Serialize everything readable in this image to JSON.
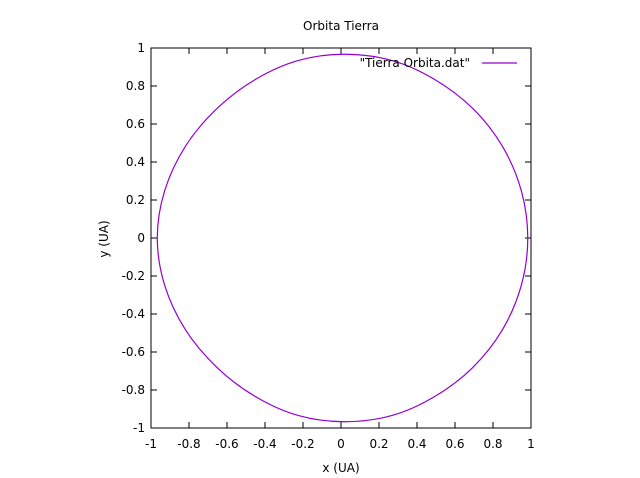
{
  "chart_data": {
    "type": "line",
    "title": "Orbita Tierra",
    "xlabel": "x (UA)",
    "ylabel": "y (UA)",
    "xlim": [
      -1,
      1
    ],
    "ylim": [
      -1,
      1
    ],
    "xticks": [
      "-1",
      "-0.8",
      "-0.6",
      "-0.4",
      "-0.2",
      "0",
      "0.2",
      "0.4",
      "0.6",
      "0.8",
      "1"
    ],
    "yticks": [
      "-1",
      "-0.8",
      "-0.6",
      "-0.4",
      "-0.2",
      "0",
      "0.2",
      "0.4",
      "0.6",
      "0.8",
      "1"
    ],
    "grid": false,
    "legend_position": "top-right",
    "series": [
      {
        "name": "\"Tierra Orbita.dat\"",
        "color": "#9400d3",
        "x": [
          0.983,
          0.949,
          0.849,
          0.692,
          0.492,
          0.269,
          0.017,
          -0.226,
          -0.45,
          -0.651,
          -0.818,
          -0.928,
          -0.967,
          -0.928,
          -0.818,
          -0.651,
          -0.45,
          -0.226,
          0.017,
          0.269,
          0.492,
          0.692,
          0.849,
          0.949,
          0.983
        ],
        "y": [
          0.0,
          0.249,
          0.484,
          0.683,
          0.835,
          0.934,
          0.967,
          0.934,
          0.835,
          0.683,
          0.484,
          0.249,
          0.0,
          -0.249,
          -0.484,
          -0.683,
          -0.835,
          -0.934,
          -0.967,
          -0.934,
          -0.835,
          -0.683,
          -0.484,
          -0.249,
          0.0
        ]
      }
    ]
  }
}
